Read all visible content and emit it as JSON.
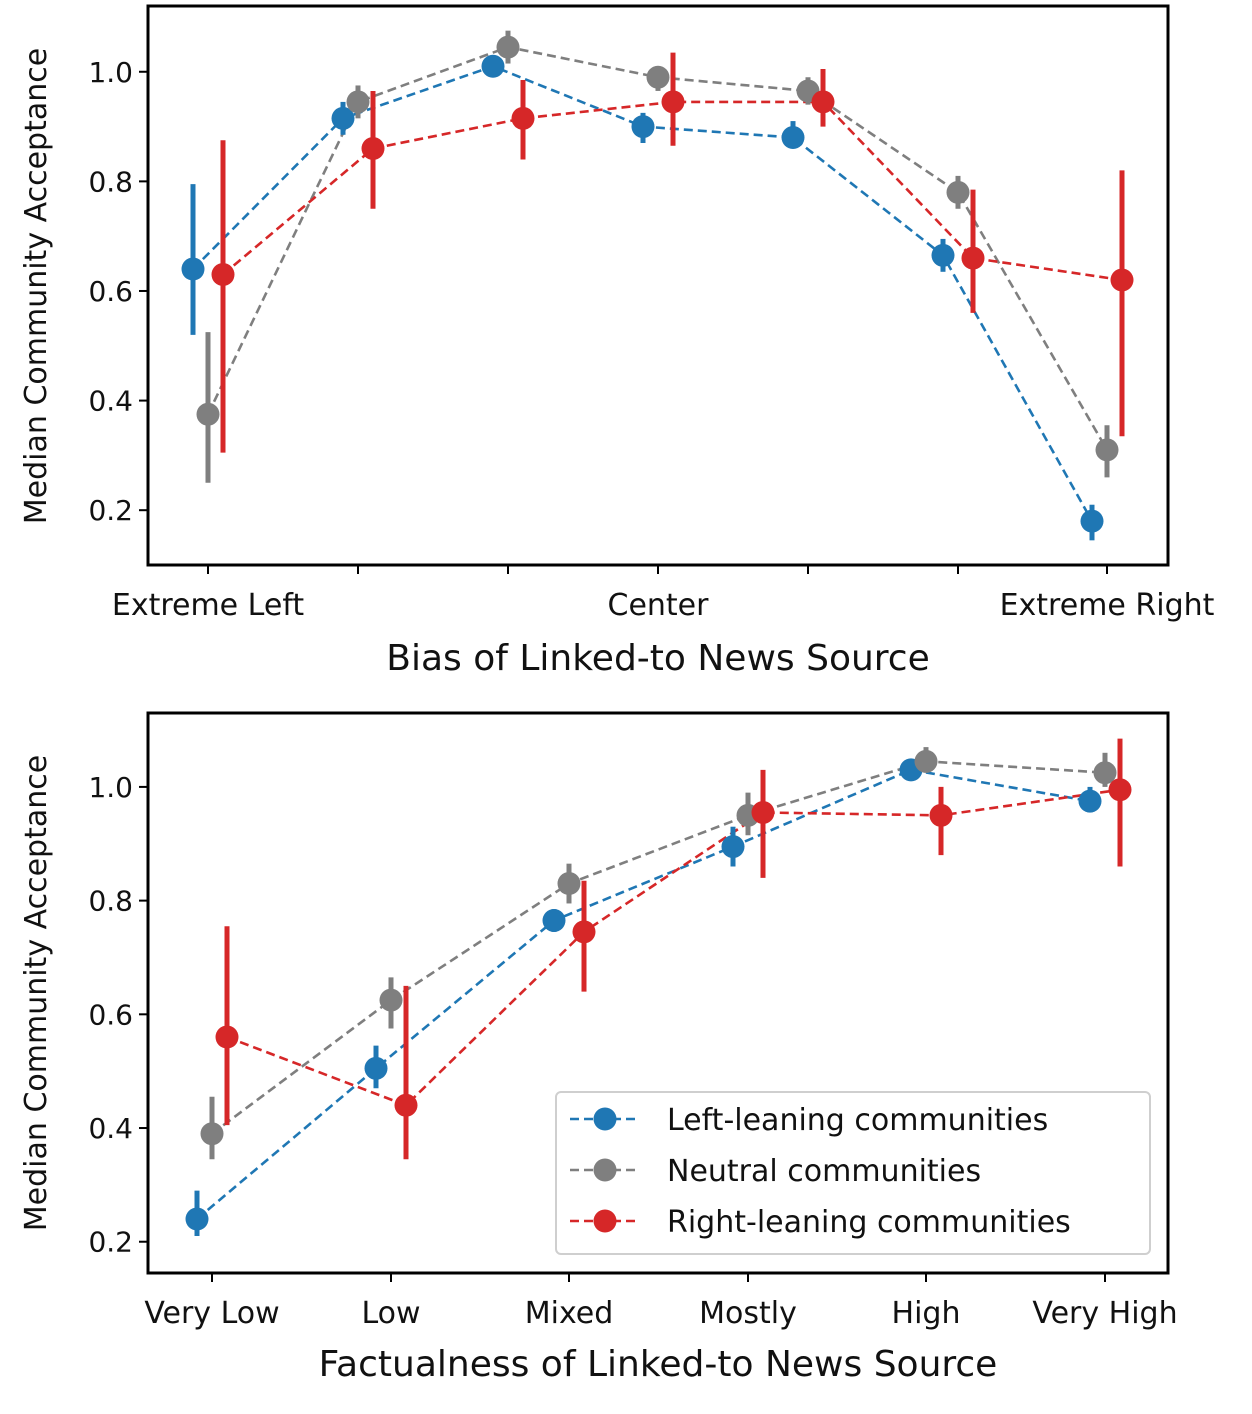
{
  "chart_data": [
    {
      "type": "line",
      "title": "",
      "xlabel": "Bias of Linked-to News Source",
      "ylabel": "Median Community Acceptance",
      "x_ticks": 7,
      "x_tick_labels": [
        "Extreme Left",
        "",
        "",
        "Center",
        "",
        "",
        "Extreme Right"
      ],
      "y_ticks": [
        "0.2",
        "0.4",
        "0.6",
        "0.8",
        "1.0"
      ],
      "ylim": [
        0.1,
        1.12
      ],
      "grid": false,
      "series": [
        {
          "name": "Left-leaning communities",
          "color": "#1f77b4",
          "values": [
            0.64,
            0.915,
            1.01,
            0.9,
            0.88,
            0.665,
            0.18
          ],
          "ci_low": [
            0.52,
            0.885,
            0.995,
            0.87,
            0.86,
            0.635,
            0.145
          ],
          "ci_high": [
            0.795,
            0.945,
            1.025,
            0.925,
            0.91,
            0.695,
            0.21
          ]
        },
        {
          "name": "Neutral communities",
          "color": "#7f7f7f",
          "values": [
            0.375,
            0.945,
            1.045,
            0.99,
            0.965,
            0.78,
            0.31
          ],
          "ci_low": [
            0.25,
            0.915,
            1.015,
            0.965,
            0.94,
            0.75,
            0.26
          ],
          "ci_high": [
            0.525,
            0.975,
            1.075,
            1.01,
            0.99,
            0.81,
            0.355
          ]
        },
        {
          "name": "Right-leaning communities",
          "color": "#d62728",
          "values": [
            0.63,
            0.86,
            0.915,
            0.945,
            0.945,
            0.66,
            0.62
          ],
          "ci_low": [
            0.305,
            0.75,
            0.84,
            0.865,
            0.9,
            0.56,
            0.335
          ],
          "ci_high": [
            0.875,
            0.965,
            0.985,
            1.035,
            1.005,
            0.785,
            0.82
          ]
        }
      ]
    },
    {
      "type": "line",
      "title": "",
      "xlabel": "Factualness of Linked-to News Source",
      "ylabel": "Median Community Acceptance",
      "categories": [
        "Very Low",
        "Low",
        "Mixed",
        "Mostly",
        "High",
        "Very High"
      ],
      "y_ticks": [
        "0.2",
        "0.4",
        "0.6",
        "0.8",
        "1.0"
      ],
      "ylim": [
        0.145,
        1.13
      ],
      "grid": false,
      "legend": {
        "placement": "lower-right",
        "entries": [
          "Left-leaning communities",
          "Neutral communities",
          "Right-leaning communities"
        ]
      },
      "series": [
        {
          "name": "Left-leaning communities",
          "color": "#1f77b4",
          "values": [
            0.24,
            0.505,
            0.765,
            0.895,
            1.03,
            0.975
          ],
          "ci_low": [
            0.21,
            0.47,
            0.745,
            0.86,
            1.015,
            0.955
          ],
          "ci_high": [
            0.29,
            0.545,
            0.785,
            0.93,
            1.045,
            1.0
          ]
        },
        {
          "name": "Neutral communities",
          "color": "#7f7f7f",
          "values": [
            0.39,
            0.625,
            0.83,
            0.95,
            1.045,
            1.025
          ],
          "ci_low": [
            0.345,
            0.575,
            0.795,
            0.915,
            1.025,
            1.0
          ],
          "ci_high": [
            0.455,
            0.665,
            0.865,
            0.99,
            1.07,
            1.06
          ]
        },
        {
          "name": "Right-leaning communities",
          "color": "#d62728",
          "values": [
            0.56,
            0.44,
            0.745,
            0.955,
            0.95,
            0.995
          ],
          "ci_low": [
            0.405,
            0.345,
            0.64,
            0.84,
            0.88,
            0.86
          ],
          "ci_high": [
            0.755,
            0.65,
            0.835,
            1.03,
            1.0,
            1.085
          ]
        }
      ]
    }
  ]
}
